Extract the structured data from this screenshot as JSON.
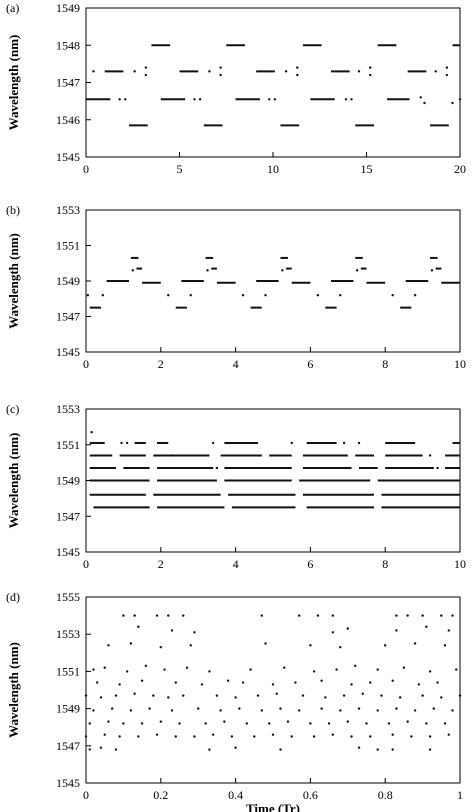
{
  "chart_data": [
    {
      "type": "scatter",
      "panel_label": "(a)",
      "ylabel": "Wavelength (nm)",
      "xlabel": "",
      "xlim": [
        0,
        20
      ],
      "ylim": [
        1545,
        1549
      ],
      "xticks": [
        0,
        5,
        10,
        15,
        20
      ],
      "yticks": [
        1545,
        1546,
        1547,
        1548,
        1549
      ],
      "grid": false,
      "segments": [
        {
          "y": 1548.0,
          "x": [
            [
              3.5,
              4.5
            ],
            [
              7.5,
              8.5
            ],
            [
              11.6,
              12.6
            ],
            [
              15.6,
              16.6
            ],
            [
              19.6,
              20.0
            ]
          ]
        },
        {
          "y": 1547.3,
          "x": [
            [
              1.0,
              2.0
            ],
            [
              5.0,
              6.0
            ],
            [
              9.1,
              10.1
            ],
            [
              13.1,
              14.1
            ],
            [
              17.2,
              18.2
            ]
          ]
        },
        {
          "y": 1546.55,
          "x": [
            [
              0.0,
              1.3
            ],
            [
              4.0,
              5.3
            ],
            [
              8.0,
              9.3
            ],
            [
              12.0,
              13.3
            ],
            [
              16.1,
              17.3
            ]
          ]
        },
        {
          "y": 1545.85,
          "x": [
            [
              2.3,
              3.3
            ],
            [
              6.3,
              7.3
            ],
            [
              10.4,
              11.4
            ],
            [
              14.4,
              15.4
            ],
            [
              18.4,
              19.4
            ]
          ]
        }
      ],
      "points": [
        [
          0.4,
          1547.3
        ],
        [
          2.6,
          1547.3
        ],
        [
          3.2,
          1547.4
        ],
        [
          3.2,
          1547.2
        ],
        [
          6.6,
          1547.3
        ],
        [
          7.2,
          1547.4
        ],
        [
          7.2,
          1547.2
        ],
        [
          10.7,
          1547.3
        ],
        [
          11.3,
          1547.4
        ],
        [
          11.3,
          1547.2
        ],
        [
          14.6,
          1547.3
        ],
        [
          15.2,
          1547.4
        ],
        [
          15.2,
          1547.2
        ],
        [
          18.7,
          1547.3
        ],
        [
          19.3,
          1547.4
        ],
        [
          19.3,
          1547.2
        ],
        [
          1.8,
          1546.55
        ],
        [
          2.1,
          1546.55
        ],
        [
          5.8,
          1546.55
        ],
        [
          6.1,
          1546.55
        ],
        [
          9.8,
          1546.55
        ],
        [
          10.1,
          1546.55
        ],
        [
          13.9,
          1546.55
        ],
        [
          14.2,
          1546.55
        ],
        [
          17.9,
          1546.6
        ],
        [
          18.1,
          1546.45
        ],
        [
          19.6,
          1546.45
        ],
        [
          20.0,
          1546.55
        ]
      ]
    },
    {
      "type": "scatter",
      "panel_label": "(b)",
      "ylabel": "Wavelength (nm)",
      "xlabel": "",
      "xlim": [
        0,
        10
      ],
      "ylim": [
        1545,
        1553
      ],
      "xticks": [
        0,
        2,
        4,
        6,
        8,
        10
      ],
      "yticks": [
        1545,
        1547,
        1549,
        1551,
        1553
      ],
      "grid": false,
      "segments": [
        {
          "y": 1550.3,
          "x": [
            [
              1.2,
              1.4
            ],
            [
              3.2,
              3.4
            ],
            [
              5.2,
              5.4
            ],
            [
              7.2,
              7.4
            ],
            [
              9.2,
              9.4
            ]
          ]
        },
        {
          "y": 1549.7,
          "x": [
            [
              1.35,
              1.5
            ],
            [
              3.35,
              3.5
            ],
            [
              5.35,
              5.5
            ],
            [
              7.35,
              7.5
            ],
            [
              9.35,
              9.5
            ]
          ]
        },
        {
          "y": 1549.0,
          "x": [
            [
              0.55,
              1.15
            ],
            [
              2.55,
              3.15
            ],
            [
              4.55,
              5.15
            ],
            [
              6.55,
              7.15
            ],
            [
              8.55,
              9.15
            ]
          ]
        },
        {
          "y": 1548.9,
          "x": [
            [
              1.5,
              2.0
            ],
            [
              3.5,
              4.0
            ],
            [
              5.5,
              6.0
            ],
            [
              7.5,
              8.0
            ],
            [
              9.5,
              10.0
            ]
          ]
        },
        {
          "y": 1547.5,
          "x": [
            [
              0.1,
              0.4
            ],
            [
              2.4,
              2.7
            ],
            [
              4.4,
              4.7
            ],
            [
              6.4,
              6.7
            ],
            [
              8.4,
              8.7
            ]
          ]
        }
      ],
      "points": [
        [
          0.05,
          1548.2
        ],
        [
          0.45,
          1548.2
        ],
        [
          1.25,
          1549.6
        ],
        [
          2.2,
          1548.2
        ],
        [
          2.8,
          1548.2
        ],
        [
          3.25,
          1549.6
        ],
        [
          4.2,
          1548.2
        ],
        [
          4.8,
          1548.2
        ],
        [
          5.25,
          1549.6
        ],
        [
          6.2,
          1548.2
        ],
        [
          6.8,
          1548.2
        ],
        [
          7.25,
          1549.6
        ],
        [
          8.2,
          1548.2
        ],
        [
          8.8,
          1548.2
        ],
        [
          9.25,
          1549.6
        ]
      ]
    },
    {
      "type": "scatter",
      "panel_label": "(c)",
      "ylabel": "Wavelength (nm)",
      "xlabel": "",
      "xlim": [
        0,
        10
      ],
      "ylim": [
        1545,
        1553
      ],
      "xticks": [
        0,
        2,
        4,
        6,
        8,
        10
      ],
      "yticks": [
        1545,
        1547,
        1549,
        1551,
        1553
      ],
      "grid": false,
      "segments": [
        {
          "y": 1551.1,
          "x": [
            [
              0.1,
              0.5
            ],
            [
              1.3,
              1.6
            ],
            [
              1.9,
              2.2
            ],
            [
              3.7,
              4.6
            ],
            [
              5.9,
              6.7
            ],
            [
              8.0,
              8.8
            ],
            [
              9.8,
              10.0
            ]
          ]
        },
        {
          "y": 1550.4,
          "x": [
            [
              0.1,
              0.7
            ],
            [
              0.9,
              1.6
            ],
            [
              1.8,
              3.3
            ],
            [
              3.6,
              4.7
            ],
            [
              4.9,
              5.5
            ],
            [
              5.8,
              7.0
            ],
            [
              7.2,
              7.7
            ],
            [
              8.0,
              9.0
            ],
            [
              9.6,
              10.0
            ]
          ]
        },
        {
          "y": 1549.7,
          "x": [
            [
              0.1,
              0.8
            ],
            [
              1.0,
              1.7
            ],
            [
              1.9,
              3.4
            ],
            [
              3.7,
              5.5
            ],
            [
              5.8,
              7.1
            ],
            [
              7.3,
              7.8
            ],
            [
              8.0,
              9.3
            ],
            [
              9.6,
              10.0
            ]
          ]
        },
        {
          "y": 1549.0,
          "x": [
            [
              0.1,
              1.7
            ],
            [
              1.9,
              3.5
            ],
            [
              3.7,
              5.5
            ],
            [
              5.7,
              7.6
            ],
            [
              7.8,
              10.0
            ]
          ]
        },
        {
          "y": 1548.2,
          "x": [
            [
              0.1,
              1.6
            ],
            [
              1.8,
              3.6
            ],
            [
              3.8,
              5.6
            ],
            [
              5.8,
              7.7
            ],
            [
              7.9,
              10.0
            ]
          ]
        },
        {
          "y": 1547.5,
          "x": [
            [
              0.2,
              1.7
            ],
            [
              1.9,
              3.7
            ],
            [
              3.9,
              5.6
            ],
            [
              5.9,
              7.7
            ],
            [
              7.9,
              10.0
            ]
          ]
        }
      ],
      "points": [
        [
          0.15,
          1551.7
        ],
        [
          0.95,
          1551.1
        ],
        [
          1.1,
          1551.1
        ],
        [
          2.3,
          1550.4
        ],
        [
          3.5,
          1549.7
        ],
        [
          6.9,
          1551.1
        ],
        [
          7.3,
          1551.1
        ],
        [
          9.2,
          1550.4
        ],
        [
          9.4,
          1549.7
        ],
        [
          5.5,
          1551.1
        ],
        [
          3.4,
          1551.1
        ]
      ]
    },
    {
      "type": "scatter",
      "panel_label": "(d)",
      "ylabel": "Wavelength (nm)",
      "xlabel": "Time (Tr)",
      "xlim": [
        0,
        1
      ],
      "ylim": [
        1545,
        1555
      ],
      "xticks": [
        0,
        0.2,
        0.4,
        0.6,
        0.8,
        1
      ],
      "yticks": [
        1545,
        1547,
        1549,
        1551,
        1553,
        1555
      ],
      "grid": false,
      "segments": [],
      "points": [
        [
          0.1,
          1554
        ],
        [
          0.13,
          1554
        ],
        [
          0.19,
          1554
        ],
        [
          0.22,
          1554
        ],
        [
          0.26,
          1554
        ],
        [
          0.47,
          1554
        ],
        [
          0.57,
          1554
        ],
        [
          0.62,
          1554
        ],
        [
          0.66,
          1554
        ],
        [
          0.83,
          1554
        ],
        [
          0.86,
          1554
        ],
        [
          0.9,
          1554
        ],
        [
          0.95,
          1554
        ],
        [
          0.98,
          1554
        ],
        [
          0.14,
          1553.4
        ],
        [
          0.23,
          1553.2
        ],
        [
          0.29,
          1553.1
        ],
        [
          0.66,
          1553.1
        ],
        [
          0.7,
          1553.3
        ],
        [
          0.83,
          1553.2
        ],
        [
          0.91,
          1553.4
        ],
        [
          0.97,
          1553.2
        ],
        [
          0.06,
          1552.4
        ],
        [
          0.12,
          1552.5
        ],
        [
          0.2,
          1552.3
        ],
        [
          0.28,
          1552.4
        ],
        [
          0.48,
          1552.5
        ],
        [
          0.6,
          1552.4
        ],
        [
          0.68,
          1552.3
        ],
        [
          0.8,
          1552.4
        ],
        [
          0.88,
          1552.5
        ],
        [
          0.96,
          1552.4
        ],
        [
          0.02,
          1551.1
        ],
        [
          0.05,
          1551.2
        ],
        [
          0.11,
          1551.0
        ],
        [
          0.16,
          1551.3
        ],
        [
          0.21,
          1551.1
        ],
        [
          0.27,
          1551.2
        ],
        [
          0.33,
          1551.0
        ],
        [
          0.44,
          1551.1
        ],
        [
          0.53,
          1551.2
        ],
        [
          0.61,
          1551.0
        ],
        [
          0.67,
          1551.1
        ],
        [
          0.72,
          1551.3
        ],
        [
          0.78,
          1551.1
        ],
        [
          0.85,
          1551.2
        ],
        [
          0.92,
          1551.0
        ],
        [
          0.99,
          1551.1
        ],
        [
          0.03,
          1550.4
        ],
        [
          0.09,
          1550.3
        ],
        [
          0.15,
          1550.5
        ],
        [
          0.24,
          1550.4
        ],
        [
          0.31,
          1550.3
        ],
        [
          0.38,
          1550.5
        ],
        [
          0.42,
          1550.4
        ],
        [
          0.5,
          1550.3
        ],
        [
          0.56,
          1550.4
        ],
        [
          0.63,
          1550.5
        ],
        [
          0.71,
          1550.3
        ],
        [
          0.76,
          1550.4
        ],
        [
          0.82,
          1550.5
        ],
        [
          0.89,
          1550.3
        ],
        [
          0.94,
          1550.4
        ],
        [
          0.0,
          1549.7
        ],
        [
          0.04,
          1549.6
        ],
        [
          0.08,
          1549.7
        ],
        [
          0.13,
          1549.8
        ],
        [
          0.18,
          1549.7
        ],
        [
          0.22,
          1549.6
        ],
        [
          0.26,
          1549.7
        ],
        [
          0.35,
          1549.7
        ],
        [
          0.4,
          1549.6
        ],
        [
          0.46,
          1549.7
        ],
        [
          0.51,
          1549.8
        ],
        [
          0.58,
          1549.7
        ],
        [
          0.64,
          1549.6
        ],
        [
          0.69,
          1549.7
        ],
        [
          0.74,
          1549.8
        ],
        [
          0.79,
          1549.7
        ],
        [
          0.84,
          1549.6
        ],
        [
          0.9,
          1549.7
        ],
        [
          0.95,
          1549.6
        ],
        [
          1.0,
          1549.7
        ],
        [
          0.02,
          1548.9
        ],
        [
          0.07,
          1549.0
        ],
        [
          0.12,
          1548.9
        ],
        [
          0.17,
          1549.0
        ],
        [
          0.23,
          1548.9
        ],
        [
          0.3,
          1549.0
        ],
        [
          0.36,
          1548.9
        ],
        [
          0.41,
          1549.0
        ],
        [
          0.47,
          1548.9
        ],
        [
          0.52,
          1549.0
        ],
        [
          0.57,
          1548.9
        ],
        [
          0.63,
          1549.0
        ],
        [
          0.68,
          1548.9
        ],
        [
          0.73,
          1549.0
        ],
        [
          0.78,
          1548.9
        ],
        [
          0.83,
          1549.0
        ],
        [
          0.88,
          1548.9
        ],
        [
          0.93,
          1549.0
        ],
        [
          0.98,
          1548.9
        ],
        [
          0.01,
          1548.2
        ],
        [
          0.06,
          1548.3
        ],
        [
          0.1,
          1548.2
        ],
        [
          0.15,
          1548.2
        ],
        [
          0.2,
          1548.3
        ],
        [
          0.25,
          1548.2
        ],
        [
          0.32,
          1548.2
        ],
        [
          0.37,
          1548.3
        ],
        [
          0.43,
          1548.2
        ],
        [
          0.49,
          1548.2
        ],
        [
          0.54,
          1548.3
        ],
        [
          0.6,
          1548.2
        ],
        [
          0.65,
          1548.2
        ],
        [
          0.7,
          1548.3
        ],
        [
          0.75,
          1548.2
        ],
        [
          0.81,
          1548.2
        ],
        [
          0.86,
          1548.3
        ],
        [
          0.91,
          1548.2
        ],
        [
          0.96,
          1548.2
        ],
        [
          0.0,
          1547.5
        ],
        [
          0.05,
          1547.6
        ],
        [
          0.09,
          1547.5
        ],
        [
          0.14,
          1547.5
        ],
        [
          0.19,
          1547.6
        ],
        [
          0.24,
          1547.5
        ],
        [
          0.29,
          1547.5
        ],
        [
          0.34,
          1547.6
        ],
        [
          0.39,
          1547.5
        ],
        [
          0.45,
          1547.5
        ],
        [
          0.5,
          1547.6
        ],
        [
          0.55,
          1547.5
        ],
        [
          0.61,
          1547.5
        ],
        [
          0.66,
          1547.6
        ],
        [
          0.71,
          1547.5
        ],
        [
          0.76,
          1547.5
        ],
        [
          0.82,
          1547.6
        ],
        [
          0.87,
          1547.5
        ],
        [
          0.92,
          1547.5
        ],
        [
          0.97,
          1547.6
        ],
        [
          0.01,
          1546.8
        ],
        [
          0.04,
          1546.9
        ],
        [
          0.08,
          1546.8
        ],
        [
          0.33,
          1546.8
        ],
        [
          0.4,
          1546.9
        ],
        [
          0.52,
          1546.8
        ],
        [
          0.73,
          1546.9
        ],
        [
          0.78,
          1546.8
        ],
        [
          0.82,
          1546.8
        ],
        [
          0.92,
          1546.8
        ]
      ]
    }
  ]
}
